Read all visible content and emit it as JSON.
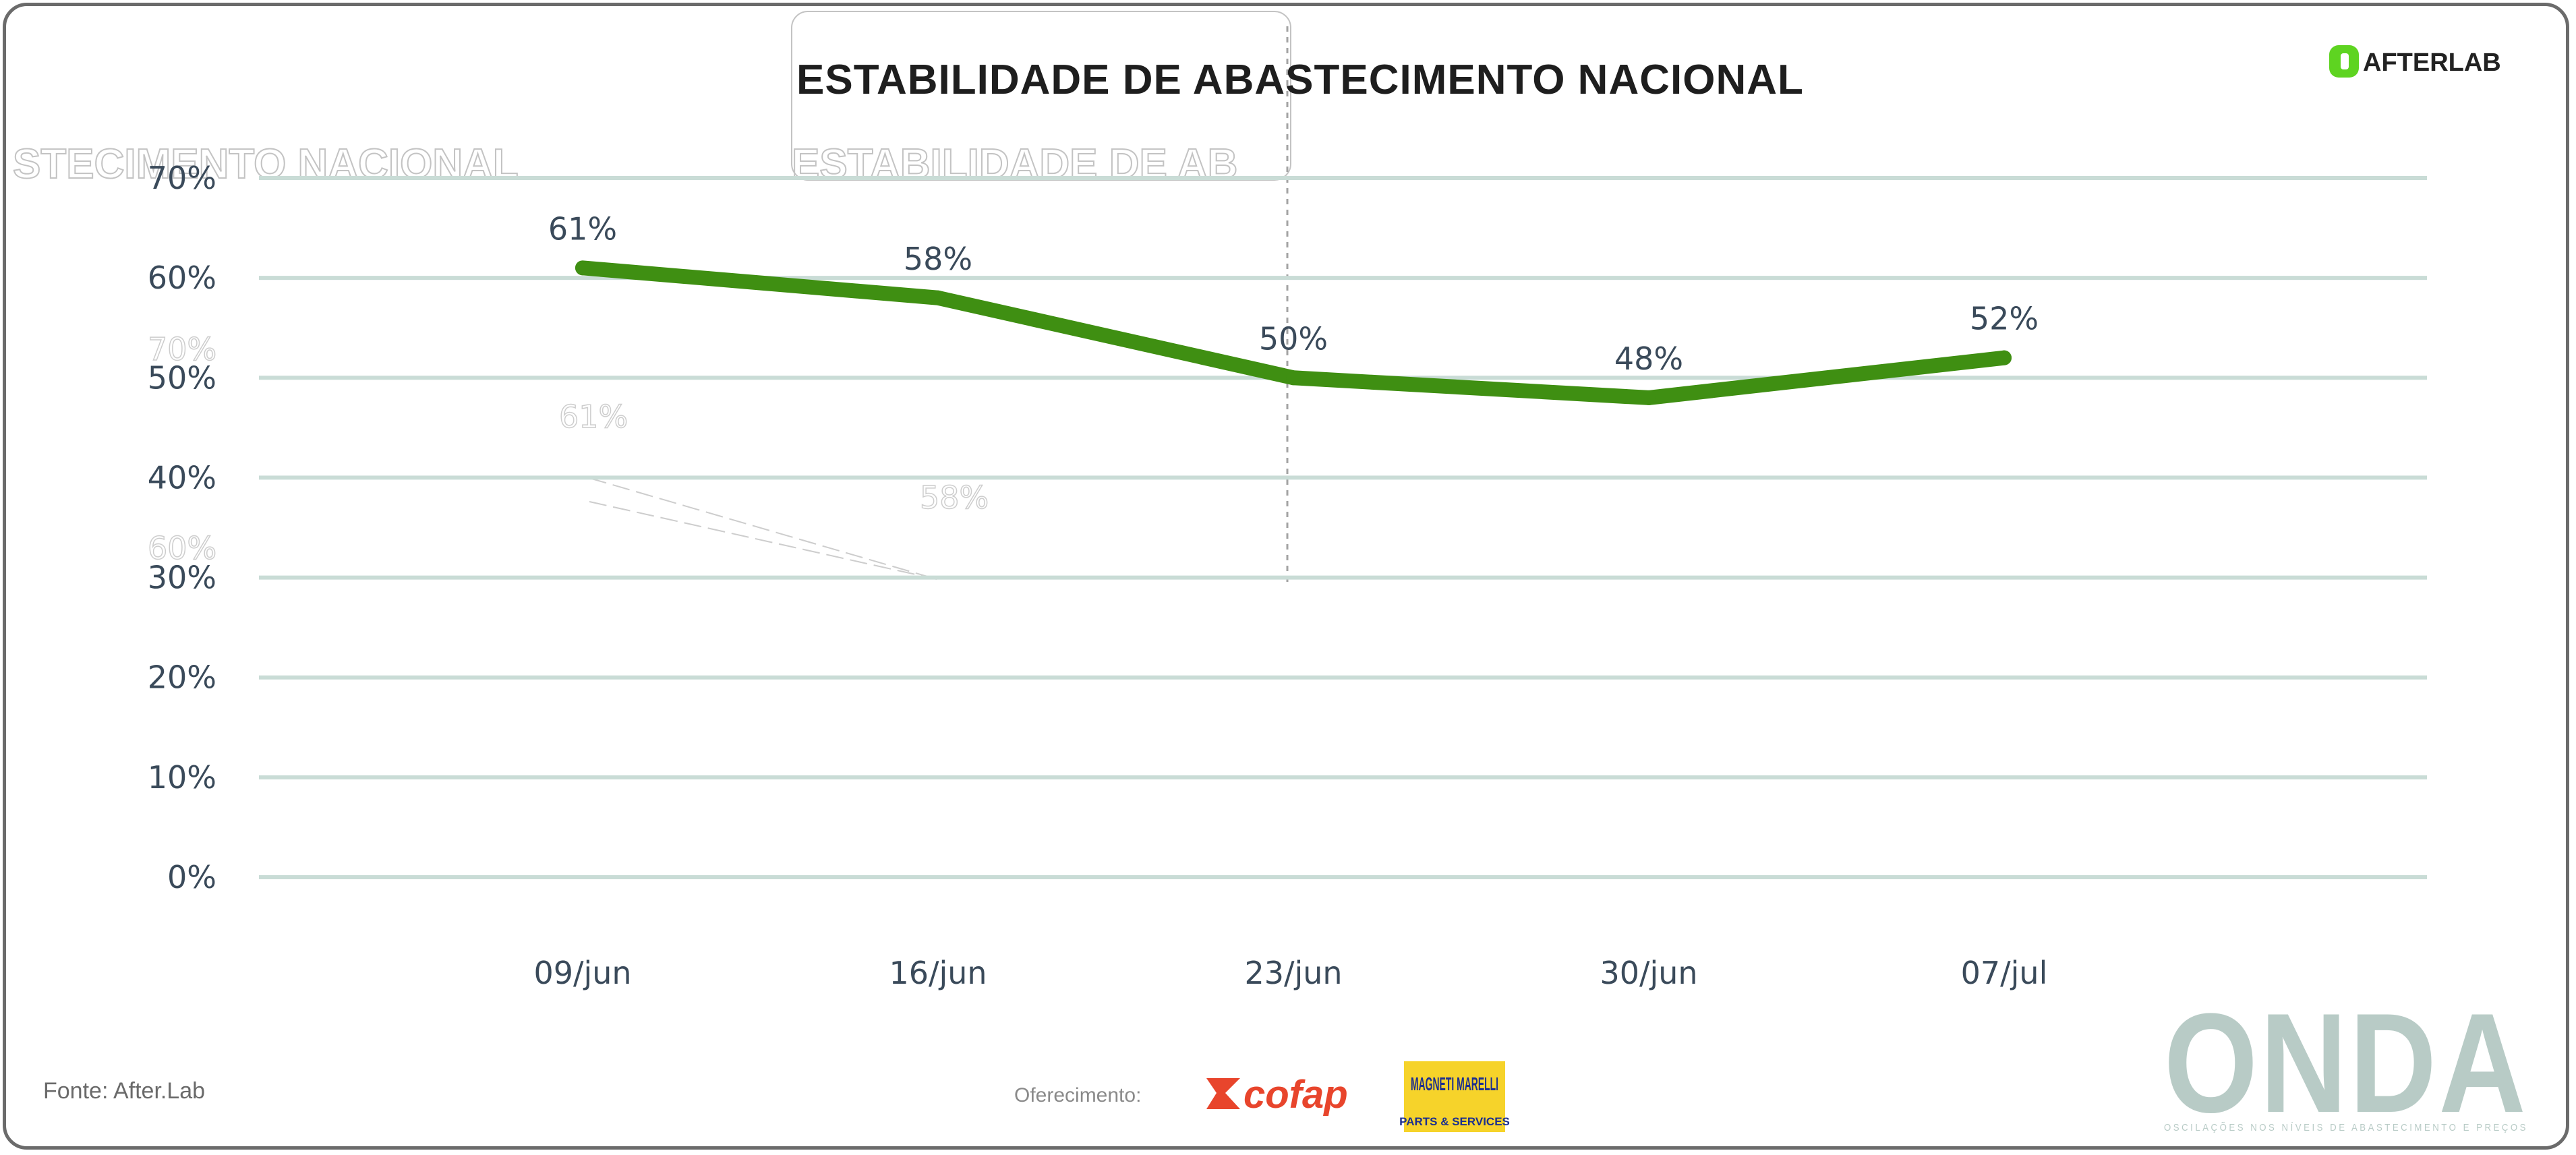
{
  "brand_top": "AFTERLAB",
  "source_label": "Fonte: After.Lab",
  "support_label": "Oferecimento:",
  "sponsors": [
    "cofap",
    "MAGNETI MARELLI",
    "PARTS & SERVICES"
  ],
  "onda": {
    "name": "ONDA",
    "tagline": "OSCILAÇÕES NOS NÍVEIS DE ABASTECIMENTO E PREÇOS"
  },
  "colors": {
    "series": "#3f8f12",
    "grid": "#c9dcd6",
    "logo_green": "#5ed421",
    "onda": "#b8cbc6",
    "cofap": "#e8452c",
    "magneti_bg": "#f6d32a"
  },
  "chart_data": {
    "type": "line",
    "title": "ESTABILIDADE DE ABASTECIMENTO NACIONAL",
    "categories": [
      "09/jun",
      "16/jun",
      "23/jun",
      "30/jun",
      "07/jul"
    ],
    "series": [
      {
        "values": [
          61,
          58,
          50,
          48,
          52
        ]
      }
    ],
    "data_labels": [
      "61%",
      "58%",
      "50%",
      "48%",
      "52%"
    ],
    "y_ticks": [
      "0%",
      "10%",
      "20%",
      "30%",
      "40%",
      "50%",
      "60%",
      "70%"
    ],
    "ylim": [
      0,
      70
    ],
    "grid": true,
    "xlabel": "",
    "ylabel": ""
  }
}
